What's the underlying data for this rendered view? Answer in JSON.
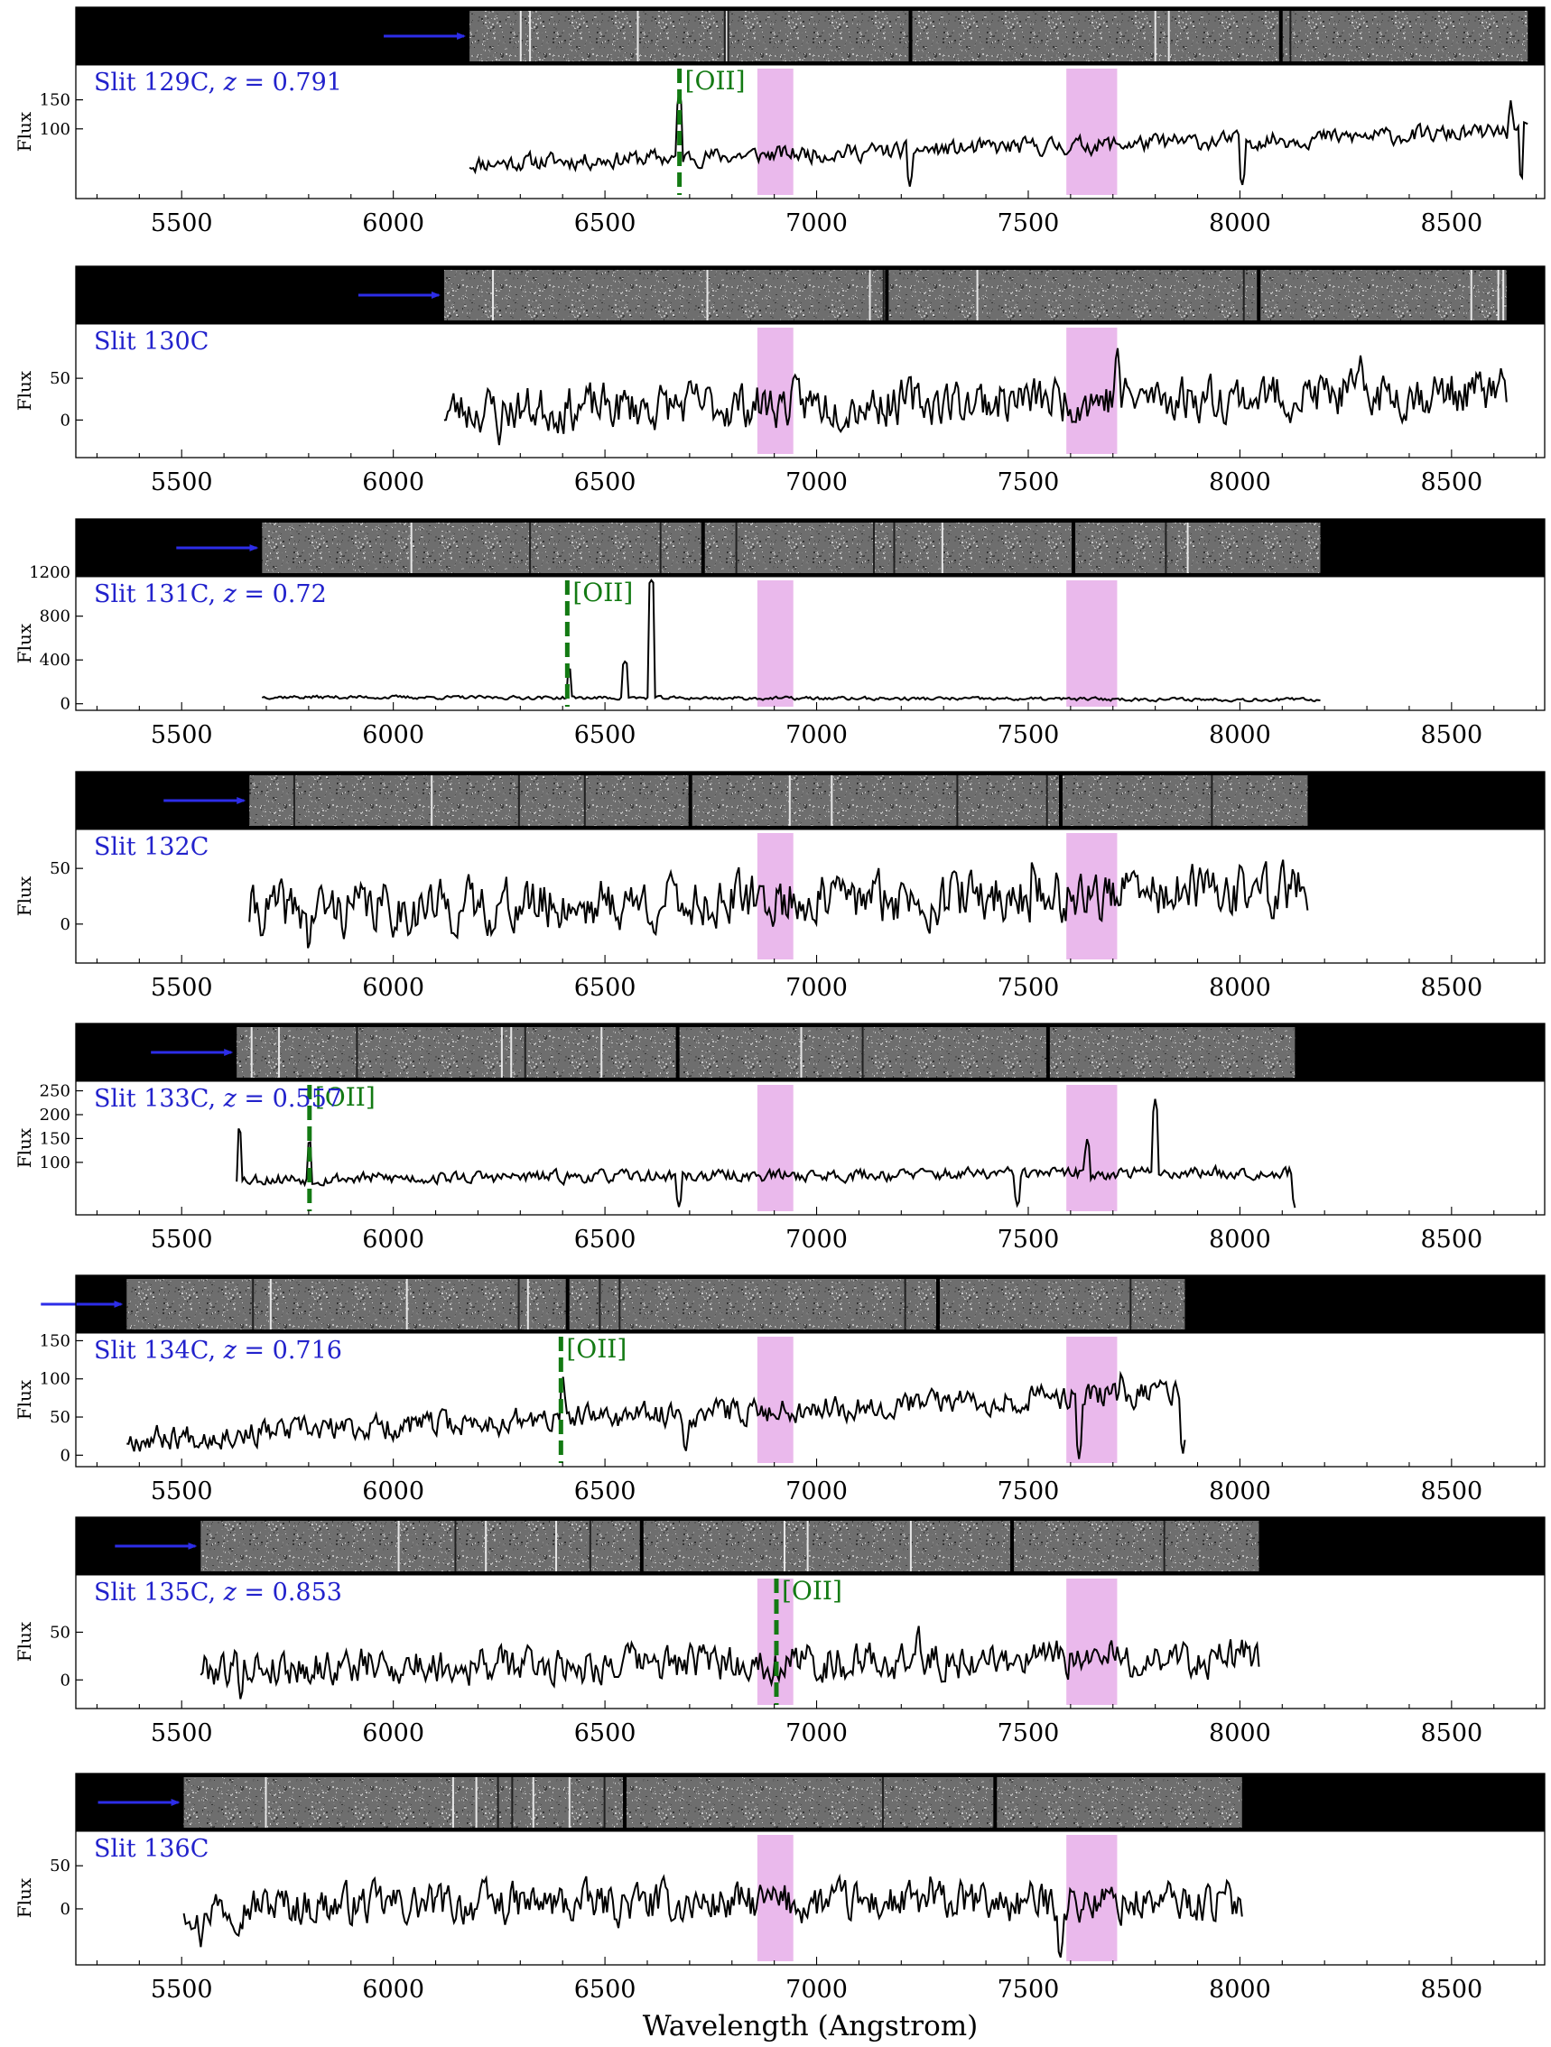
{
  "chart_data": {
    "type": "line",
    "xlabel": "Wavelength (Angstrom)",
    "xlim": [
      5250,
      8720
    ],
    "xticks": [
      5500,
      6000,
      6500,
      7000,
      7500,
      8000,
      8500
    ],
    "ylabel": "Flux",
    "colors": {
      "spectrum": "#000000",
      "emission_line": "#137a13",
      "slit_label": "#2222cc",
      "arrow": "#2d2de8",
      "telluric_band": "#eab9ec",
      "spectrum_2d_background": "#000000"
    },
    "telluric_bands": [
      [
        6860,
        6945
      ],
      [
        7590,
        7710
      ]
    ],
    "panels": [
      {
        "slit": "Slit 129C",
        "z": "0.791",
        "x_range": [
          6180,
          8680
        ],
        "ylim": [
          -20,
          210
        ],
        "yticks": [
          100,
          150
        ],
        "baseline": 40,
        "amplitude": 15,
        "trend": 55,
        "seed": 11,
        "line": {
          "label": "[OII]",
          "wavelength": 6676
        },
        "peaks": [
          [
            6676,
            170
          ],
          [
            8640,
            150
          ]
        ],
        "dips": [
          [
            7220,
            0
          ],
          [
            8005,
            0
          ],
          [
            8665,
            10
          ]
        ]
      },
      {
        "slit": "Slit 130C",
        "z": "",
        "x_range": [
          6120,
          8630
        ],
        "ylim": [
          -45,
          115
        ],
        "yticks": [
          0,
          50
        ],
        "baseline": 12,
        "amplitude": 28,
        "trend": 22,
        "seed": 23,
        "line": null,
        "peaks": [
          [
            7710,
            93
          ],
          [
            8285,
            78
          ]
        ],
        "dips": [
          [
            6250,
            -30
          ]
        ]
      },
      {
        "slit": "Slit 131C",
        "z": "0.72",
        "x_range": [
          5690,
          8190
        ],
        "ylim": [
          -60,
          1160
        ],
        "yticks": [
          0,
          400,
          800,
          1200
        ],
        "baseline": 62,
        "amplitude": 16,
        "trend": -25,
        "seed": 37,
        "line": {
          "label": "[OII]",
          "wavelength": 6411
        },
        "peaks": [
          [
            6415,
            330
          ],
          [
            6548,
            390
          ],
          [
            6610,
            1130
          ]
        ],
        "dips": []
      },
      {
        "slit": "Slit 132C",
        "z": "",
        "x_range": [
          5660,
          8160
        ],
        "ylim": [
          -35,
          85
        ],
        "yticks": [
          0,
          50
        ],
        "baseline": 12,
        "amplitude": 24,
        "trend": 18,
        "seed": 41,
        "line": null,
        "peaks": [
          [
            7510,
            66
          ],
          [
            8060,
            67
          ]
        ],
        "dips": [
          [
            5800,
            -28
          ]
        ]
      },
      {
        "slit": "Slit 133C",
        "z": "0.557",
        "x_range": [
          5630,
          8130
        ],
        "ylim": [
          -10,
          270
        ],
        "yticks": [
          100,
          150,
          200,
          250
        ],
        "baseline": 65,
        "amplitude": 13,
        "trend": 15,
        "seed": 53,
        "line": {
          "label": "[OII]",
          "wavelength": 5802
        },
        "peaks": [
          [
            5636,
            180
          ],
          [
            5802,
            155
          ],
          [
            7640,
            155
          ],
          [
            7800,
            235
          ]
        ],
        "dips": [
          [
            6675,
            5
          ],
          [
            7475,
            5
          ],
          [
            8130,
            5
          ]
        ]
      },
      {
        "slit": "Slit 134C",
        "z": "0.716",
        "x_range": [
          5370,
          7870
        ],
        "ylim": [
          -15,
          160
        ],
        "yticks": [
          0,
          50,
          100,
          150
        ],
        "baseline": 22,
        "amplitude": 17,
        "trend": 62,
        "seed": 67,
        "line": {
          "label": "[OII]",
          "wavelength": 6396
        },
        "peaks": [
          [
            6400,
            110
          ],
          [
            7720,
            117
          ]
        ],
        "dips": [
          [
            6690,
            0
          ],
          [
            7620,
            -5
          ],
          [
            7865,
            0
          ]
        ]
      },
      {
        "slit": "Slit 135C",
        "z": "0.853",
        "x_range": [
          5545,
          8045
        ],
        "ylim": [
          -30,
          110
        ],
        "yticks": [
          0,
          50
        ],
        "baseline": 13,
        "amplitude": 20,
        "trend": 10,
        "seed": 79,
        "line": {
          "label": "[OII]",
          "wavelength": 6905
        },
        "peaks": [
          [
            7240,
            65
          ]
        ],
        "dips": [
          [
            5640,
            -25
          ]
        ]
      },
      {
        "slit": "Slit 136C",
        "z": "",
        "x_range": [
          5505,
          8005
        ],
        "ylim": [
          -65,
          90
        ],
        "yticks": [
          0,
          50
        ],
        "baseline": 4,
        "amplitude": 24,
        "trend": 4,
        "seed": 97,
        "line": null,
        "peaks": [
          [
            7270,
            47
          ]
        ],
        "dips": [
          [
            7575,
            -62
          ],
          [
            5545,
            -45
          ]
        ]
      }
    ]
  }
}
